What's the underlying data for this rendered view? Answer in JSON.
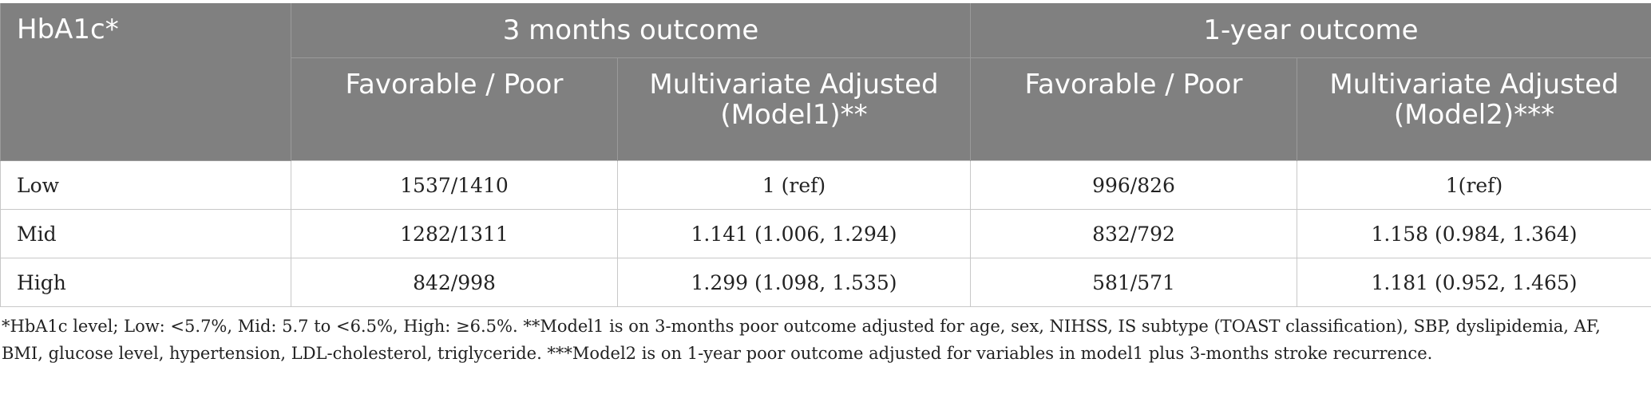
{
  "table": {
    "header": {
      "row_label_header": "HbA1c*",
      "groups": [
        "3 months outcome",
        "1-year outcome"
      ],
      "subheaders": [
        "Favorable / Poor",
        "Multivariate Adjusted (Model1)**",
        "Favorable / Poor",
        "Multivariate Adjusted (Model2)***"
      ]
    },
    "rows": [
      {
        "label": "Low",
        "cells": [
          "1537/1410",
          "1 (ref)",
          "996/826",
          "1(ref)"
        ]
      },
      {
        "label": "Mid",
        "cells": [
          "1282/1311",
          "1.141 (1.006, 1.294)",
          "832/792",
          "1.158 (0.984, 1.364)"
        ]
      },
      {
        "label": "High",
        "cells": [
          "842/998",
          "1.299 (1.098, 1.535)",
          "581/571",
          "1.181 (0.952, 1.465)"
        ]
      }
    ]
  },
  "footnote": "*HbA1c level; Low: <5.7%, Mid: 5.7 to <6.5%, High: ≥6.5%. **Model1 is on 3-months poor outcome adjusted for age, sex, NIHSS, IS subtype (TOAST classification), SBP, dyslipidemia, AF, BMI, glucose level, hypertension, LDL-cholesterol, triglyceride. ***Model2 is on 1-year poor outcome adjusted for variables in model1 plus 3-months stroke recurrence."
}
